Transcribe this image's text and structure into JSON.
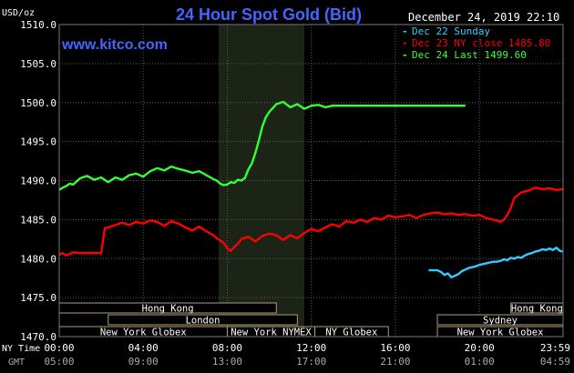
{
  "chart_data": {
    "type": "line",
    "title": "24 Hour Spot Gold (Bid)",
    "watermark": "www.kitco.com",
    "timestamp": "December 24, 2019 22:10",
    "ylabel": "USD/oz",
    "ylim": [
      1470,
      1510
    ],
    "y_ticks": [
      "1470.0",
      "1475.0",
      "1480.0",
      "1485.0",
      "1490.0",
      "1495.0",
      "1500.0",
      "1505.0",
      "1510.0"
    ],
    "y_tick_values": [
      1470,
      1475,
      1480,
      1485,
      1490,
      1495,
      1500,
      1505,
      1510
    ],
    "xlim": [
      0,
      1439
    ],
    "x_ticks": [
      {
        "minute": 0,
        "ny": "00:00",
        "gmt": "05:00"
      },
      {
        "minute": 240,
        "ny": "04:00",
        "gmt": "09:00"
      },
      {
        "minute": 480,
        "ny": "08:00",
        "gmt": "13:00"
      },
      {
        "minute": 720,
        "ny": "12:00",
        "gmt": "17:00"
      },
      {
        "minute": 960,
        "ny": "16:00",
        "gmt": "21:00"
      },
      {
        "minute": 1200,
        "ny": "20:00",
        "gmt": "01:00"
      },
      {
        "minute": 1439,
        "ny": "23:59",
        "gmt": "04:59"
      }
    ],
    "x_row_labels": {
      "ny": "NY Time",
      "gmt": "GMT"
    },
    "grid": true,
    "highlight_band": [
      455,
      700
    ],
    "legend_position": "top-right",
    "series": [
      {
        "name": "Dec 22 Sunday",
        "color": "#33ccff",
        "x": [
          1055,
          1080,
          1090,
          1100,
          1110,
          1120,
          1130,
          1140,
          1150,
          1160,
          1170,
          1180,
          1190,
          1200,
          1210,
          1220,
          1230,
          1240,
          1250,
          1260,
          1270,
          1280,
          1290,
          1300,
          1310,
          1320,
          1330,
          1340,
          1350,
          1360,
          1370,
          1380,
          1390,
          1400,
          1410,
          1420,
          1430,
          1439
        ],
        "y": [
          1478.5,
          1478.5,
          1478.3,
          1477.9,
          1478.1,
          1477.6,
          1477.8,
          1478.0,
          1478.4,
          1478.6,
          1478.8,
          1478.9,
          1479.0,
          1479.2,
          1479.3,
          1479.4,
          1479.5,
          1479.6,
          1479.6,
          1479.7,
          1479.9,
          1479.8,
          1480.1,
          1480.0,
          1480.2,
          1480.1,
          1480.4,
          1480.6,
          1480.7,
          1480.9,
          1481.0,
          1481.2,
          1481.1,
          1481.3,
          1481.1,
          1481.4,
          1481.0,
          1480.9
        ]
      },
      {
        "name": "Dec 23 NY close 1485.80",
        "color": "#ff0000",
        "x": [
          0,
          10,
          20,
          30,
          40,
          60,
          80,
          100,
          120,
          130,
          140,
          160,
          180,
          200,
          220,
          240,
          260,
          280,
          300,
          320,
          340,
          360,
          380,
          400,
          420,
          440,
          450,
          460,
          470,
          480,
          490,
          500,
          510,
          520,
          540,
          560,
          580,
          600,
          620,
          640,
          660,
          680,
          700,
          720,
          740,
          760,
          780,
          800,
          820,
          840,
          860,
          880,
          900,
          920,
          940,
          960,
          980,
          1000,
          1020,
          1040,
          1060,
          1080,
          1100,
          1120,
          1140,
          1160,
          1180,
          1200,
          1220,
          1240,
          1260,
          1270,
          1280,
          1290,
          1300,
          1320,
          1340,
          1360,
          1380,
          1400,
          1420,
          1439
        ],
        "y": [
          1480.5,
          1480.7,
          1480.4,
          1480.6,
          1480.8,
          1480.7,
          1480.7,
          1480.7,
          1480.7,
          1483.9,
          1484.0,
          1484.3,
          1484.6,
          1484.3,
          1484.7,
          1484.5,
          1484.9,
          1484.7,
          1484.2,
          1484.8,
          1484.5,
          1484.0,
          1483.6,
          1484.1,
          1483.5,
          1483.0,
          1482.6,
          1482.3,
          1482.0,
          1481.3,
          1481.0,
          1481.5,
          1481.9,
          1482.5,
          1482.8,
          1482.2,
          1482.9,
          1483.2,
          1483.0,
          1482.4,
          1483.0,
          1482.6,
          1483.3,
          1483.8,
          1483.5,
          1484.0,
          1484.4,
          1484.1,
          1484.8,
          1484.6,
          1485.0,
          1484.7,
          1485.2,
          1485.0,
          1485.5,
          1485.3,
          1485.4,
          1485.6,
          1485.2,
          1485.6,
          1485.8,
          1485.9,
          1485.7,
          1485.8,
          1485.6,
          1485.7,
          1485.5,
          1485.6,
          1485.2,
          1485.0,
          1484.7,
          1485.0,
          1485.6,
          1486.5,
          1487.8,
          1488.5,
          1488.7,
          1489.1,
          1488.9,
          1489.0,
          1488.8,
          1488.9
        ]
      },
      {
        "name": "Dec 24 Last 1499.60",
        "color": "#33ff33",
        "x": [
          0,
          10,
          20,
          30,
          40,
          60,
          80,
          100,
          120,
          140,
          160,
          180,
          200,
          220,
          240,
          260,
          280,
          300,
          320,
          340,
          360,
          380,
          400,
          420,
          440,
          450,
          460,
          470,
          480,
          490,
          500,
          510,
          520,
          530,
          540,
          550,
          560,
          570,
          580,
          590,
          600,
          610,
          620,
          640,
          660,
          680,
          700,
          720,
          740,
          760,
          780,
          800,
          1160
        ],
        "y": [
          1488.8,
          1489.1,
          1489.3,
          1489.6,
          1489.5,
          1490.3,
          1490.6,
          1490.1,
          1490.4,
          1489.8,
          1490.4,
          1490.1,
          1490.7,
          1490.9,
          1490.5,
          1491.2,
          1491.6,
          1491.3,
          1491.8,
          1491.5,
          1491.3,
          1491.0,
          1491.2,
          1490.7,
          1490.2,
          1490.0,
          1489.6,
          1489.4,
          1489.5,
          1489.8,
          1489.7,
          1490.1,
          1490.0,
          1490.3,
          1491.4,
          1492.2,
          1493.5,
          1495.1,
          1496.9,
          1498.1,
          1498.8,
          1499.3,
          1499.8,
          1500.1,
          1499.4,
          1499.8,
          1499.2,
          1499.6,
          1499.7,
          1499.4,
          1499.6,
          1499.6,
          1499.6
        ]
      }
    ],
    "sessions": [
      {
        "label": "Hong Kong",
        "row": 0,
        "start": 0,
        "end": 620
      },
      {
        "label": "Hong Kong",
        "row": 0,
        "start": 1290,
        "end": 1439
      },
      {
        "label": "London",
        "row": 1,
        "start": 140,
        "end": 680
      },
      {
        "label": "Sydney",
        "row": 1,
        "start": 1080,
        "end": 1439
      },
      {
        "label": "New York Globex",
        "row": 2,
        "start": 0,
        "end": 480
      },
      {
        "label": "New York NYMEX",
        "row": 2,
        "start": 480,
        "end": 730
      },
      {
        "label": "NY Globex",
        "row": 2,
        "start": 730,
        "end": 940
      },
      {
        "label": "New York Globex",
        "row": 2,
        "start": 1080,
        "end": 1439
      }
    ]
  }
}
